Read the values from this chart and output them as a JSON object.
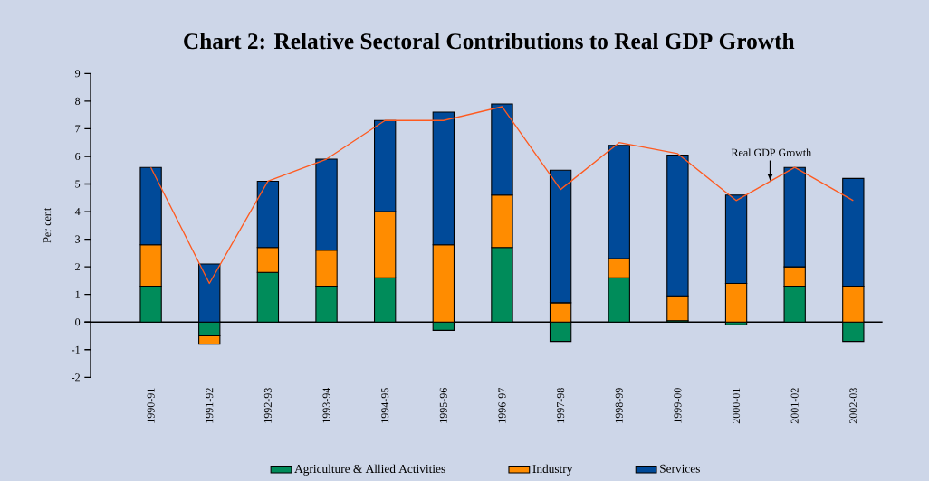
{
  "chart_data": {
    "type": "bar",
    "title": "Chart 2: Relative Sectoral Contributions to Real GDP Growth",
    "ylabel": "Per cent",
    "categories": [
      "1990-91",
      "1991-92",
      "1992-93",
      "1993-94",
      "1994-95",
      "1995-96",
      "1996-97",
      "1997-98",
      "1998-99",
      "1999-00",
      "2000-01",
      "2001-02",
      "2002-03"
    ],
    "stacked": true,
    "series": [
      {
        "name": "Agriculture & Allied Activities",
        "color": "#008c5a",
        "values": [
          1.3,
          -0.5,
          1.8,
          1.3,
          1.6,
          -0.3,
          2.7,
          -0.7,
          1.6,
          0.05,
          -0.1,
          1.3,
          -0.7
        ]
      },
      {
        "name": "Industry",
        "color": "#ff8c00",
        "values": [
          1.5,
          -0.3,
          0.9,
          1.3,
          2.4,
          2.8,
          1.9,
          0.7,
          0.7,
          0.9,
          1.4,
          0.7,
          1.3
        ]
      },
      {
        "name": "Services",
        "color": "#004a99",
        "values": [
          2.8,
          2.1,
          2.4,
          3.3,
          3.3,
          4.8,
          3.3,
          4.8,
          4.1,
          5.1,
          3.2,
          3.6,
          3.9
        ]
      },
      {
        "type": "line",
        "color": "#ff5a1f",
        "values": [
          5.6,
          1.4,
          5.1,
          5.9,
          7.3,
          7.3,
          7.8,
          4.8,
          6.5,
          6.1,
          4.4,
          5.6,
          4.4
        ]
      }
    ],
    "ylim": [
      -2,
      9
    ],
    "yticks": [
      -2,
      -1,
      0,
      1,
      2,
      3,
      4,
      5,
      6,
      7,
      8,
      9
    ],
    "annotations": [
      {
        "text": "Real GDP Growth",
        "y": 5.1
      }
    ],
    "legend": "bottom"
  }
}
